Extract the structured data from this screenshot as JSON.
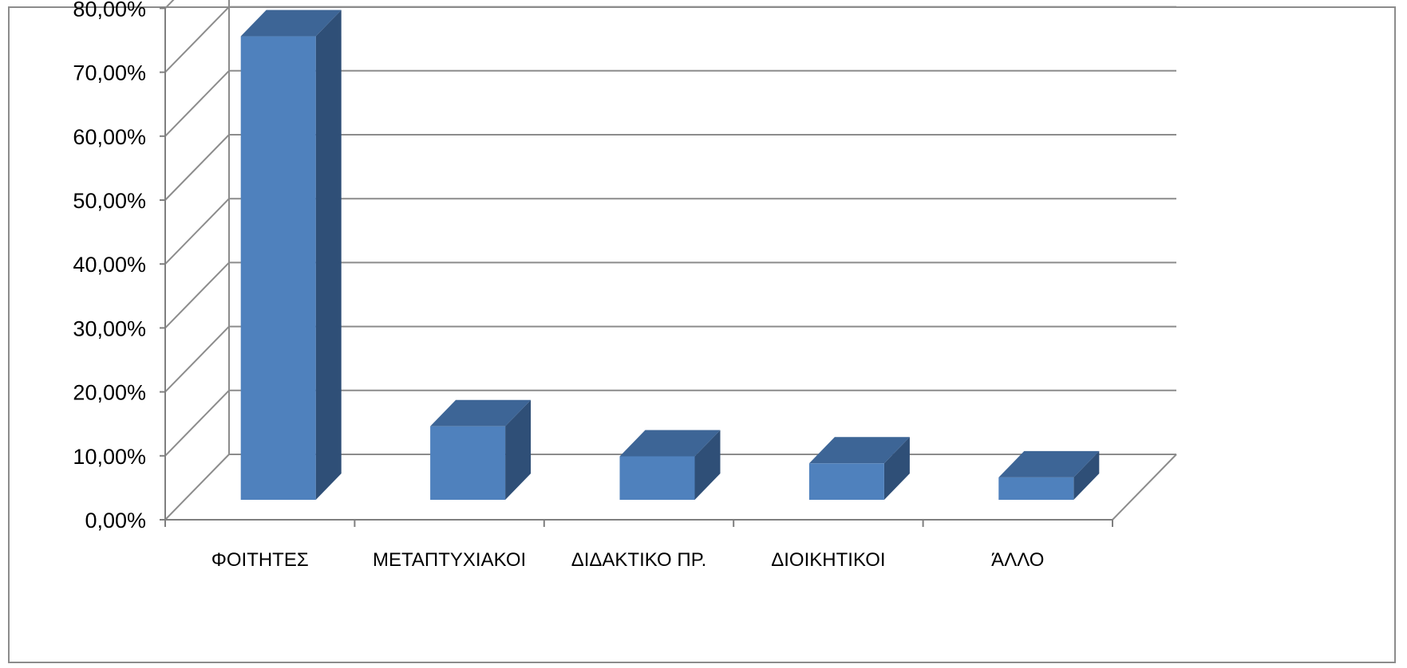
{
  "chart_data": {
    "type": "bar",
    "title": "",
    "xlabel": "",
    "ylabel": "",
    "categories": [
      "ΦΟΙΤΗΤΕΣ",
      "ΜΕΤΑΠΤΥΧΙΑΚΟΙ",
      "ΔΙΔΑΚΤΙΚΟ ΠΡ.",
      "ΔΙΟΙΚΗΤΙΚΟΙ",
      "ΆΛΛΟ"
    ],
    "values": [
      72.5,
      11.5,
      6.8,
      5.7,
      3.5
    ],
    "ylim": [
      0,
      80
    ],
    "yticks": [
      "0,00%",
      "10,00%",
      "20,00%",
      "30,00%",
      "40,00%",
      "50,00%",
      "60,00%",
      "70,00%",
      "80,00%"
    ],
    "style": "3d-column",
    "grid": true,
    "legend": "none",
    "colors": {
      "bar_front": "#4f81bd",
      "bar_top": "#3d6596",
      "bar_side": "#2f4f77",
      "grid": "#8c8c8c",
      "axis": "#7f7f7f",
      "frame": "#8c8c8c"
    }
  }
}
